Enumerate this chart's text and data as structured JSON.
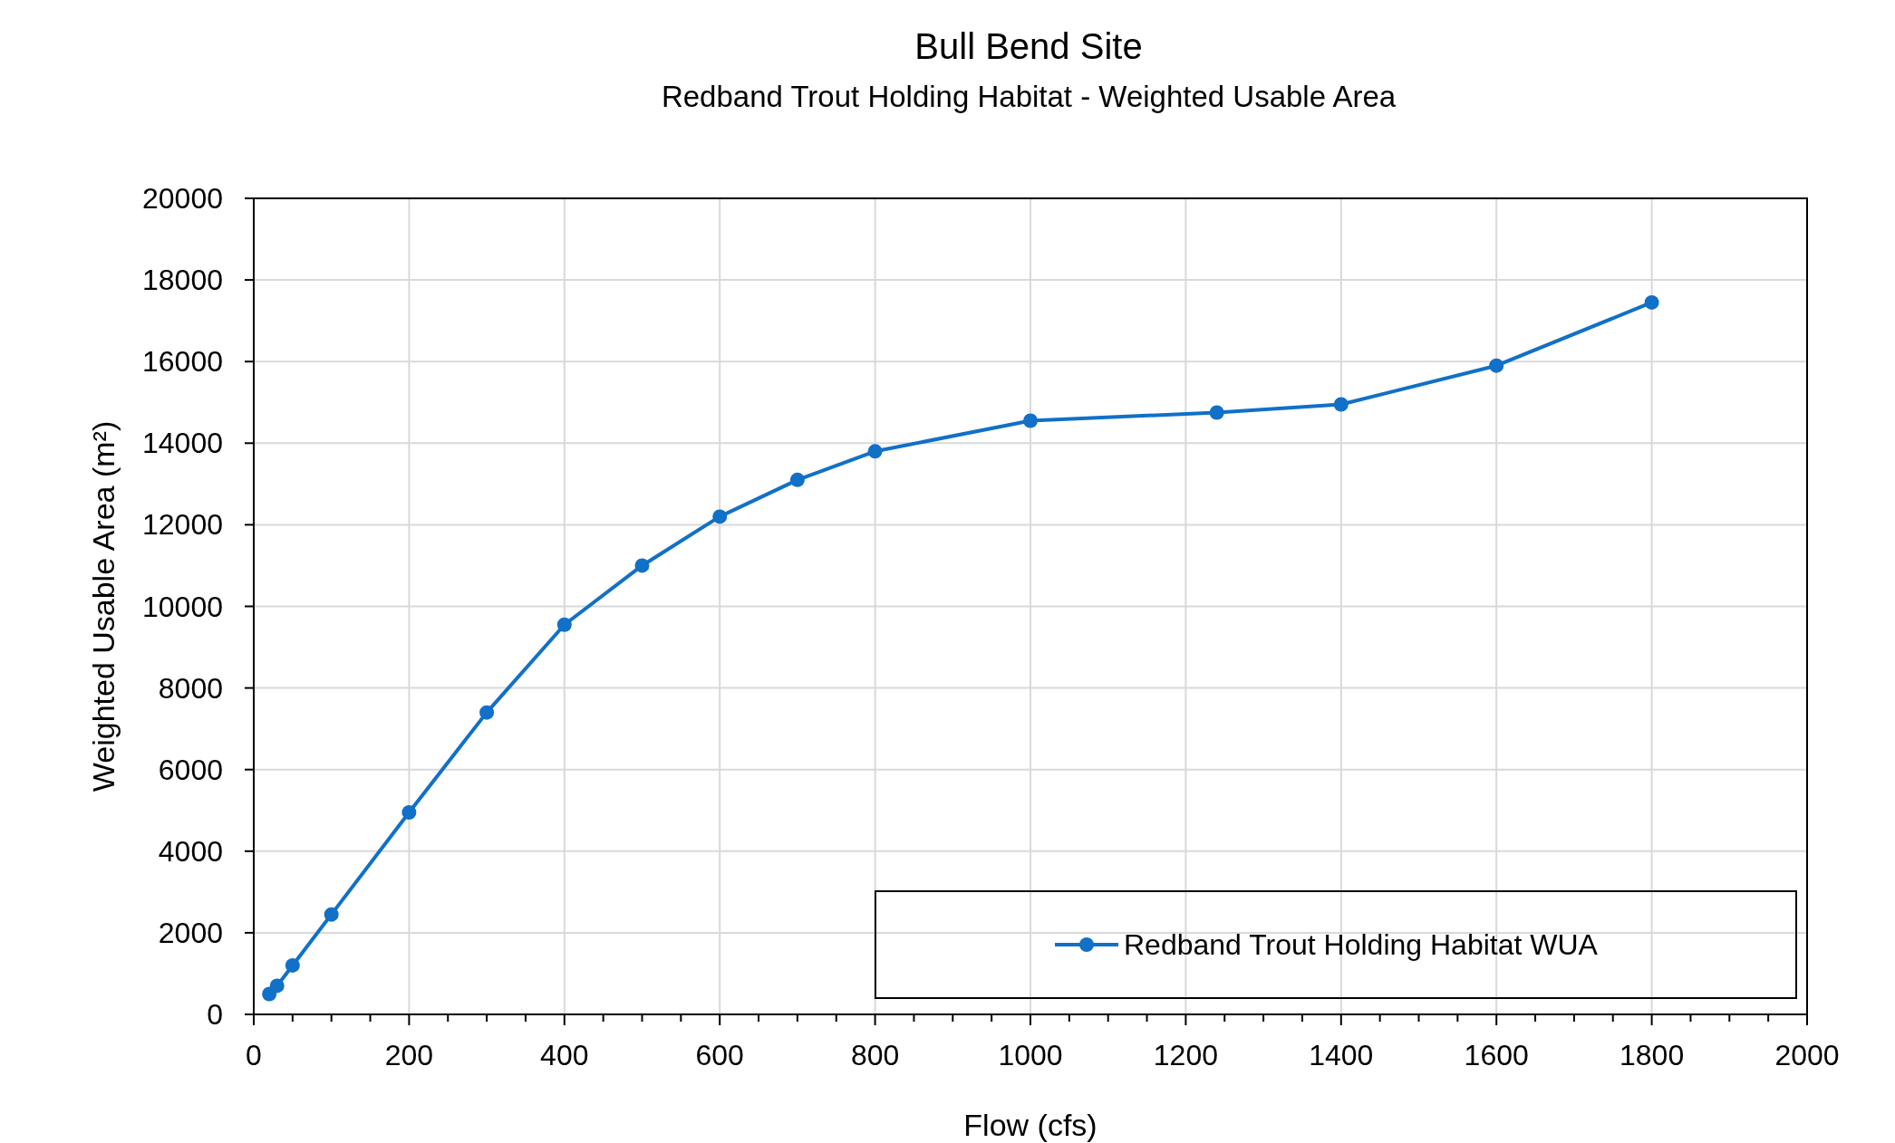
{
  "chart_data": {
    "type": "line",
    "title": "Bull Bend Site",
    "subtitle": "Redband Trout Holding Habitat - Weighted Usable Area",
    "xlabel": "Flow (cfs)",
    "ylabel": "Weighted Usable Area (m²)",
    "x": [
      20,
      30,
      50,
      100,
      200,
      300,
      400,
      500,
      600,
      700,
      800,
      1000,
      1240,
      1400,
      1600,
      1800
    ],
    "series": [
      {
        "name": "Redband Trout Holding Habitat WUA",
        "color": "#1170c8",
        "values": [
          500,
          700,
          1200,
          2450,
          4950,
          7400,
          9550,
          11000,
          12200,
          13100,
          13800,
          14550,
          14750,
          14950,
          15900,
          17450
        ]
      }
    ],
    "xlim": [
      0,
      2000
    ],
    "ylim": [
      0,
      20000
    ],
    "xticks": [
      0,
      {
        "value": 50,
        "label": null
      },
      {
        "value": 100,
        "label": null
      },
      {
        "value": 150,
        "label": null
      },
      200,
      {
        "value": 250,
        "label": null
      },
      {
        "value": 300,
        "label": null
      },
      {
        "value": 350,
        "label": null
      },
      400,
      {
        "value": 450,
        "label": null
      },
      {
        "value": 500,
        "label": null
      },
      {
        "value": 550,
        "label": null
      },
      600,
      {
        "value": 650,
        "label": null
      },
      {
        "value": 700,
        "label": null
      },
      {
        "value": 750,
        "label": null
      },
      800,
      {
        "value": 850,
        "label": null
      },
      {
        "value": 900,
        "label": null
      },
      {
        "value": 950,
        "label": null
      },
      1000,
      {
        "value": 1050,
        "label": null
      },
      {
        "value": 1100,
        "label": null
      },
      {
        "value": 1150,
        "label": null
      },
      1200,
      {
        "value": 1250,
        "label": null
      },
      {
        "value": 1300,
        "label": null
      },
      {
        "value": 1350,
        "label": null
      },
      1400,
      {
        "value": 1450,
        "label": null
      },
      {
        "value": 1500,
        "label": null
      },
      {
        "value": 1550,
        "label": null
      },
      1600,
      {
        "value": 1650,
        "label": null
      },
      {
        "value": 1700,
        "label": null
      },
      {
        "value": 1750,
        "label": null
      },
      1800,
      {
        "value": 1850,
        "label": null
      },
      {
        "value": 1900,
        "label": null
      },
      {
        "value": 1950,
        "label": null
      },
      2000
    ],
    "yticks": [
      0,
      2000,
      4000,
      6000,
      8000,
      10000,
      12000,
      14000,
      16000,
      18000,
      20000
    ],
    "grid": true,
    "legend": "bottom right",
    "marker": "circle",
    "line_style": "solid"
  }
}
